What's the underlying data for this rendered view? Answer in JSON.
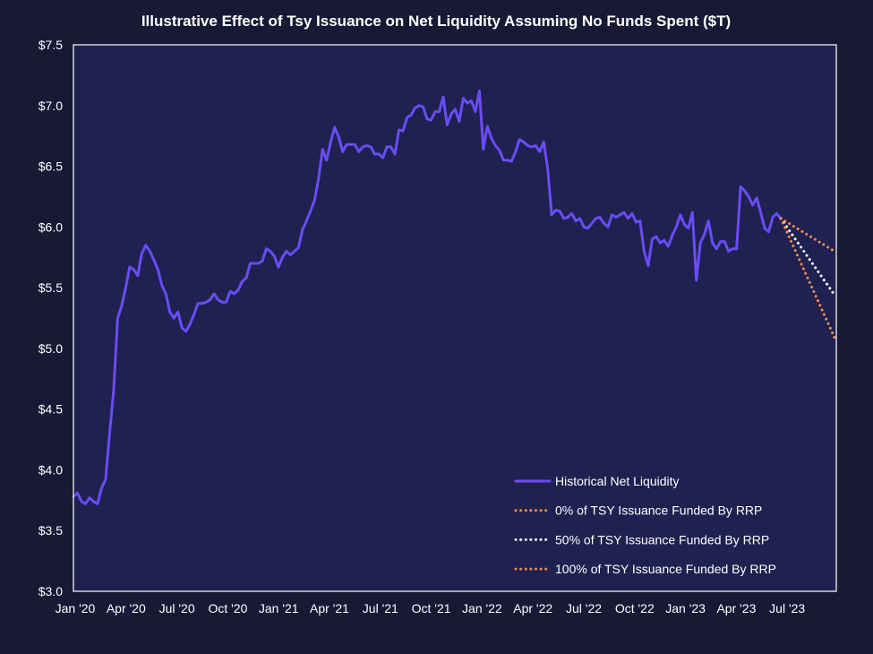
{
  "colors": {
    "page_background": "#181935",
    "plot_background": "#1f2150",
    "historical": "#6a4cf5",
    "scenario_0": "#f08a4b",
    "scenario_50": "#f2f2f8",
    "scenario_100": "#f08a4b"
  },
  "chart_data": {
    "type": "line",
    "title": "Illustrative Effect of Tsy Issuance on Net Liquidity Assuming No Funds Spent ($T)",
    "xlabel": "",
    "ylabel": "",
    "ylim": [
      3.0,
      7.5
    ],
    "y_ticks": [
      "$3.0",
      "$3.5",
      "$4.0",
      "$4.5",
      "$5.0",
      "$5.5",
      "$6.0",
      "$6.5",
      "$7.0",
      "$7.5"
    ],
    "x_ticks": [
      "Jan '20",
      "Apr '20",
      "Jul '20",
      "Oct '20",
      "Jan '21",
      "Apr '21",
      "Jul '21",
      "Oct '21",
      "Jan '22",
      "Apr '22",
      "Jul '22",
      "Oct '22",
      "Jan '23",
      "Apr '23",
      "Jul '23"
    ],
    "legend_position": "bottom-right",
    "grid": false,
    "series": [
      {
        "name": "Historical Net Liquidity",
        "style": "solid",
        "color": "#6a4cf5",
        "values": [
          3.78,
          3.81,
          3.74,
          3.72,
          3.77,
          3.74,
          3.72,
          3.85,
          3.92,
          4.3,
          4.65,
          5.25,
          5.35,
          5.5,
          5.67,
          5.65,
          5.6,
          5.78,
          5.85,
          5.8,
          5.73,
          5.65,
          5.52,
          5.45,
          5.3,
          5.25,
          5.3,
          5.17,
          5.14,
          5.2,
          5.28,
          5.37,
          5.37,
          5.38,
          5.4,
          5.45,
          5.4,
          5.38,
          5.38,
          5.47,
          5.45,
          5.48,
          5.55,
          5.58,
          5.7,
          5.7,
          5.7,
          5.72,
          5.82,
          5.8,
          5.76,
          5.67,
          5.75,
          5.8,
          5.77,
          5.8,
          5.83,
          5.98,
          6.05,
          6.13,
          6.22,
          6.4,
          6.64,
          6.55,
          6.7,
          6.82,
          6.74,
          6.62,
          6.68,
          6.68,
          6.68,
          6.62,
          6.66,
          6.67,
          6.66,
          6.6,
          6.6,
          6.57,
          6.66,
          6.66,
          6.6,
          6.8,
          6.79,
          6.9,
          6.92,
          6.98,
          7.0,
          6.99,
          6.89,
          6.88,
          6.95,
          6.95,
          7.07,
          6.84,
          6.93,
          6.97,
          6.87,
          7.06,
          7.02,
          7.04,
          6.95,
          7.12,
          6.64,
          6.83,
          6.73,
          6.67,
          6.63,
          6.55,
          6.55,
          6.54,
          6.62,
          6.72,
          6.7,
          6.67,
          6.66,
          6.67,
          6.62,
          6.7,
          6.48,
          6.1,
          6.14,
          6.13,
          6.07,
          6.08,
          6.11,
          6.05,
          6.07,
          6.0,
          5.99,
          6.03,
          6.07,
          6.08,
          6.03,
          6.0,
          6.1,
          6.08,
          6.1,
          6.12,
          6.07,
          6.11,
          6.04,
          6.05,
          5.8,
          5.68,
          5.9,
          5.92,
          5.87,
          5.89,
          5.84,
          5.93,
          6.0,
          6.1,
          6.02,
          5.99,
          6.12,
          5.56,
          5.87,
          5.94,
          6.05,
          5.87,
          5.82,
          5.88,
          5.88,
          5.8,
          5.82,
          5.82,
          6.33,
          6.3,
          6.25,
          6.18,
          6.24,
          6.12,
          5.99,
          5.96,
          6.08,
          6.11,
          6.07
        ]
      },
      {
        "name": "0% of TSY Issuance Funded By RRP",
        "style": "dotted",
        "color": "#f08a4b",
        "values": [
          6.07,
          5.8
        ]
      },
      {
        "name": "50% of TSY Issuance Funded By RRP",
        "style": "dotted",
        "color": "#f2f2f8",
        "values": [
          6.07,
          5.44
        ]
      },
      {
        "name": "100% of TSY Issuance Funded By RRP",
        "style": "dotted",
        "color": "#f08a4b",
        "values": [
          6.07,
          5.09
        ]
      }
    ]
  }
}
